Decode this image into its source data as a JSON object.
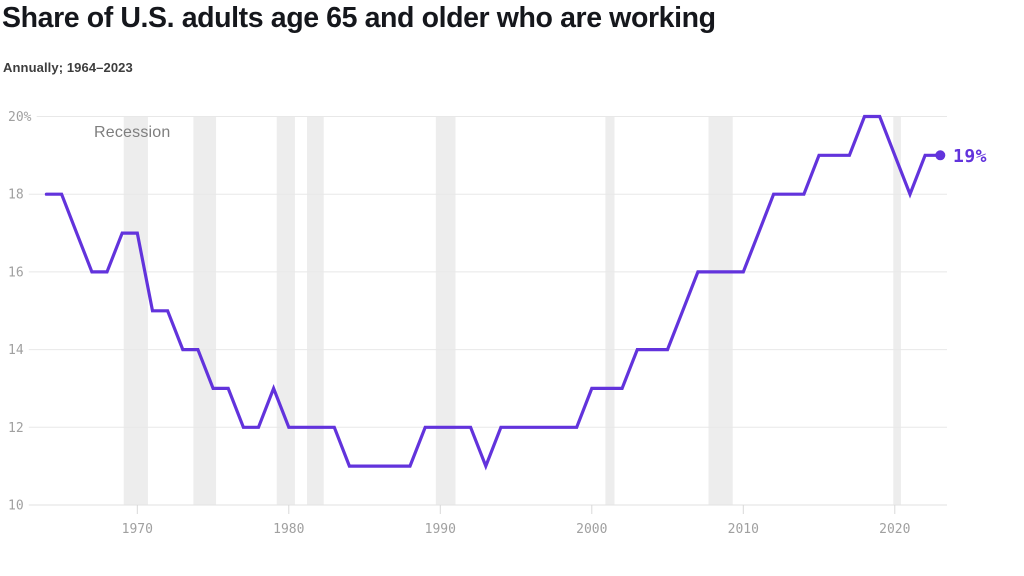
{
  "header": {
    "title": "Share of U.S. adults age 65 and older who are working",
    "subtitle": "Annually; 1964–2023"
  },
  "chart_data": {
    "type": "line",
    "title": "Share of U.S. adults age 65 and older who are working",
    "subtitle": "Annually; 1964–2023",
    "unit": "%",
    "annotation": "Recession",
    "end_label": "19%",
    "xlim": [
      1964,
      2023.5
    ],
    "ylim": [
      10,
      20
    ],
    "grid": "horizontal",
    "x_ticks": [
      {
        "value": 1970,
        "label": "1970"
      },
      {
        "value": 1980,
        "label": "1980"
      },
      {
        "value": 1990,
        "label": "1990"
      },
      {
        "value": 2000,
        "label": "2000"
      },
      {
        "value": 2010,
        "label": "2010"
      },
      {
        "value": 2020,
        "label": "2020"
      }
    ],
    "y_ticks": [
      {
        "value": 20,
        "label": "20%"
      },
      {
        "value": 18,
        "label": "18"
      },
      {
        "value": 16,
        "label": "16"
      },
      {
        "value": 14,
        "label": "14"
      },
      {
        "value": 12,
        "label": "12"
      },
      {
        "value": 10,
        "label": "10"
      }
    ],
    "years": [
      1964,
      1965,
      1966,
      1967,
      1968,
      1969,
      1970,
      1971,
      1972,
      1973,
      1974,
      1975,
      1976,
      1977,
      1978,
      1979,
      1980,
      1981,
      1982,
      1983,
      1984,
      1985,
      1986,
      1987,
      1988,
      1989,
      1990,
      1991,
      1992,
      1993,
      1994,
      1995,
      1996,
      1997,
      1998,
      1999,
      2000,
      2001,
      2002,
      2003,
      2004,
      2005,
      2006,
      2007,
      2008,
      2009,
      2010,
      2011,
      2012,
      2013,
      2014,
      2015,
      2016,
      2017,
      2018,
      2019,
      2020,
      2021,
      2022,
      2023
    ],
    "values": [
      18,
      18,
      17,
      16,
      16,
      17,
      17,
      15,
      15,
      14,
      14,
      13,
      13,
      12,
      12,
      13,
      12,
      12,
      12,
      12,
      11,
      11,
      11,
      11,
      11,
      12,
      12,
      12,
      12,
      11,
      12,
      12,
      12,
      12,
      12,
      12,
      13,
      13,
      13,
      14,
      14,
      14,
      15,
      16,
      16,
      16,
      16,
      17,
      18,
      18,
      18,
      19,
      19,
      19,
      20,
      20,
      19,
      18,
      19,
      19
    ],
    "recessions": [
      [
        1969.1,
        1970.7
      ],
      [
        1973.7,
        1975.2
      ],
      [
        1979.2,
        1980.4
      ],
      [
        1981.2,
        1982.3
      ],
      [
        1989.7,
        1991.0
      ],
      [
        2000.9,
        2001.5
      ],
      [
        2007.7,
        2009.3
      ],
      [
        2019.9,
        2020.4
      ]
    ],
    "colors": {
      "line": "#6233DC",
      "end_label": "#6233DC",
      "recession_band": "#ededed",
      "gridline": "#e8e8e8",
      "axis_line": "#e2e2e2",
      "tick_mark": "#d8d8d8",
      "axis_text": "#a0a0a0",
      "annotation_text": "#7e7e7e",
      "title_text": "#15171c",
      "subtitle_text": "#3d3d3d"
    }
  }
}
